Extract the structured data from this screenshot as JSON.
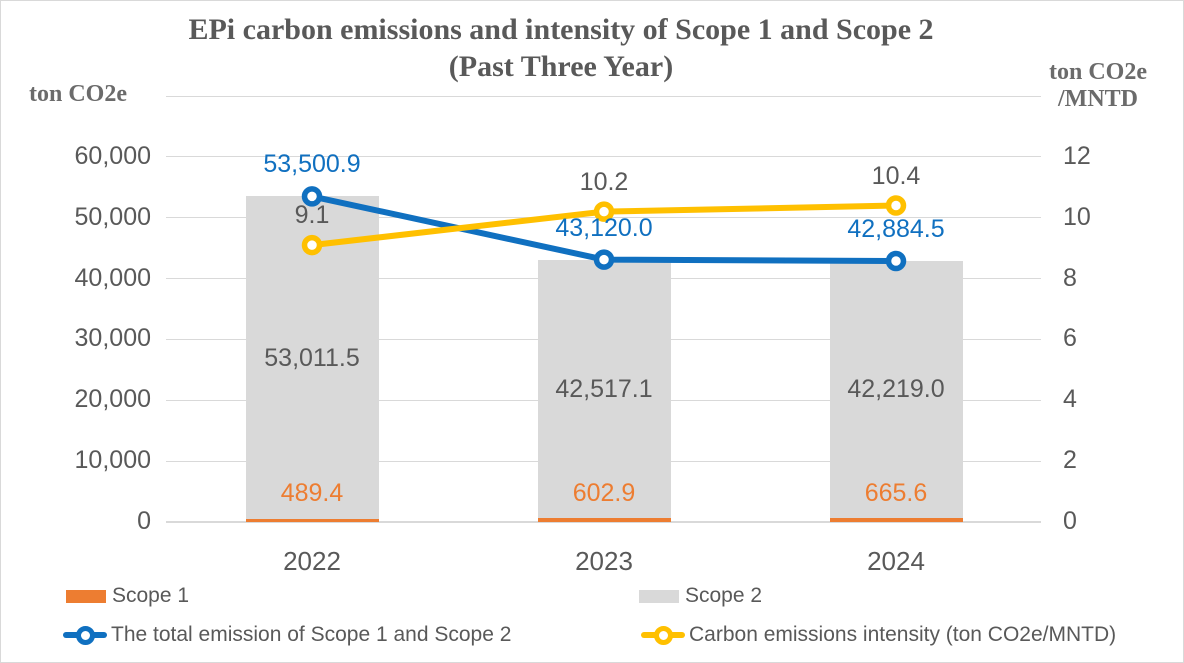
{
  "figure": {
    "title_line1": "EPi carbon emissions and intensity of Scope 1 and Scope 2",
    "title_line2": "(Past Three Year)"
  },
  "left_axis": {
    "unit": "ton CO2e",
    "ticks": [
      "60,000",
      "50,000",
      "40,000",
      "30,000",
      "20,000",
      "10,000",
      "0"
    ]
  },
  "right_axis": {
    "unit_line1": "ton CO2e",
    "unit_line2": "/MNTD",
    "ticks": [
      "12",
      "10",
      "8",
      "6",
      "4",
      "2",
      "0"
    ]
  },
  "legend": {
    "items": [
      {
        "label": "Scope 1",
        "swatch": "bar",
        "color": "#ED7D31"
      },
      {
        "label": "Scope 2",
        "swatch": "bar",
        "color": "#D9D9D9"
      },
      {
        "label": "The total emission of Scope 1 and Scope 2",
        "swatch": "line-marker",
        "color": "#1070C0"
      },
      {
        "label": "Carbon emissions intensity (ton CO2e/MNTD)",
        "swatch": "line-marker",
        "color": "#FFC000"
      }
    ]
  },
  "colors": {
    "scope1_orange": "#ED7D31",
    "scope2_gray": "#D9D9D9",
    "total_blue": "#1070C0",
    "intensity_yellow": "#FFC000",
    "text_gray": "#595959",
    "gridline_gray": "#D9D9D9"
  },
  "chart_data": {
    "type": "combo (stacked bar + 2 lines)",
    "title": "EPi carbon emissions and intensity of Scope 1 and Scope 2 (Past Three Year)",
    "categories": [
      "2022",
      "2023",
      "2024"
    ],
    "series": [
      {
        "name": "Scope 1",
        "type": "bar",
        "stack": "emissions",
        "axis": "left",
        "color": "#ED7D31",
        "values": [
          489.4,
          602.9,
          665.6
        ],
        "labels": [
          "489.4",
          "602.9",
          "665.6"
        ],
        "label_color": "#ED7D31"
      },
      {
        "name": "Scope 2",
        "type": "bar",
        "stack": "emissions",
        "axis": "left",
        "color": "#D9D9D9",
        "values": [
          53011.5,
          42517.1,
          42219.0
        ],
        "labels": [
          "53,011.5",
          "42,517.1",
          "42,219.0"
        ],
        "label_color": "#595959"
      },
      {
        "name": "The total emission of Scope 1 and Scope 2",
        "type": "line",
        "axis": "left",
        "color": "#1070C0",
        "values": [
          53500.9,
          43120.0,
          42884.5
        ],
        "labels": [
          "53,500.9",
          "43,120.0",
          "42,884.5"
        ],
        "label_color": "#1070C0"
      },
      {
        "name": "Carbon emissions intensity (ton CO2e/MNTD)",
        "type": "line",
        "axis": "right",
        "color": "#FFC000",
        "values": [
          9.1,
          10.2,
          10.4
        ],
        "labels": [
          "10.2",
          "10.4",
          "9.1"
        ],
        "label_color": "#595959",
        "labels_by_category": [
          "9.1",
          "10.2",
          "10.4"
        ]
      }
    ],
    "left_axis_label": "ton CO2e",
    "right_axis_label": "ton CO2e/MNTD",
    "left_tick_values": [
      0,
      10000,
      20000,
      30000,
      40000,
      50000,
      60000
    ],
    "left_plot_max": 70000,
    "right_tick_values": [
      0,
      2,
      4,
      6,
      8,
      10,
      12
    ],
    "right_plot_max": 14,
    "grid": true,
    "legend_position": "bottom"
  }
}
